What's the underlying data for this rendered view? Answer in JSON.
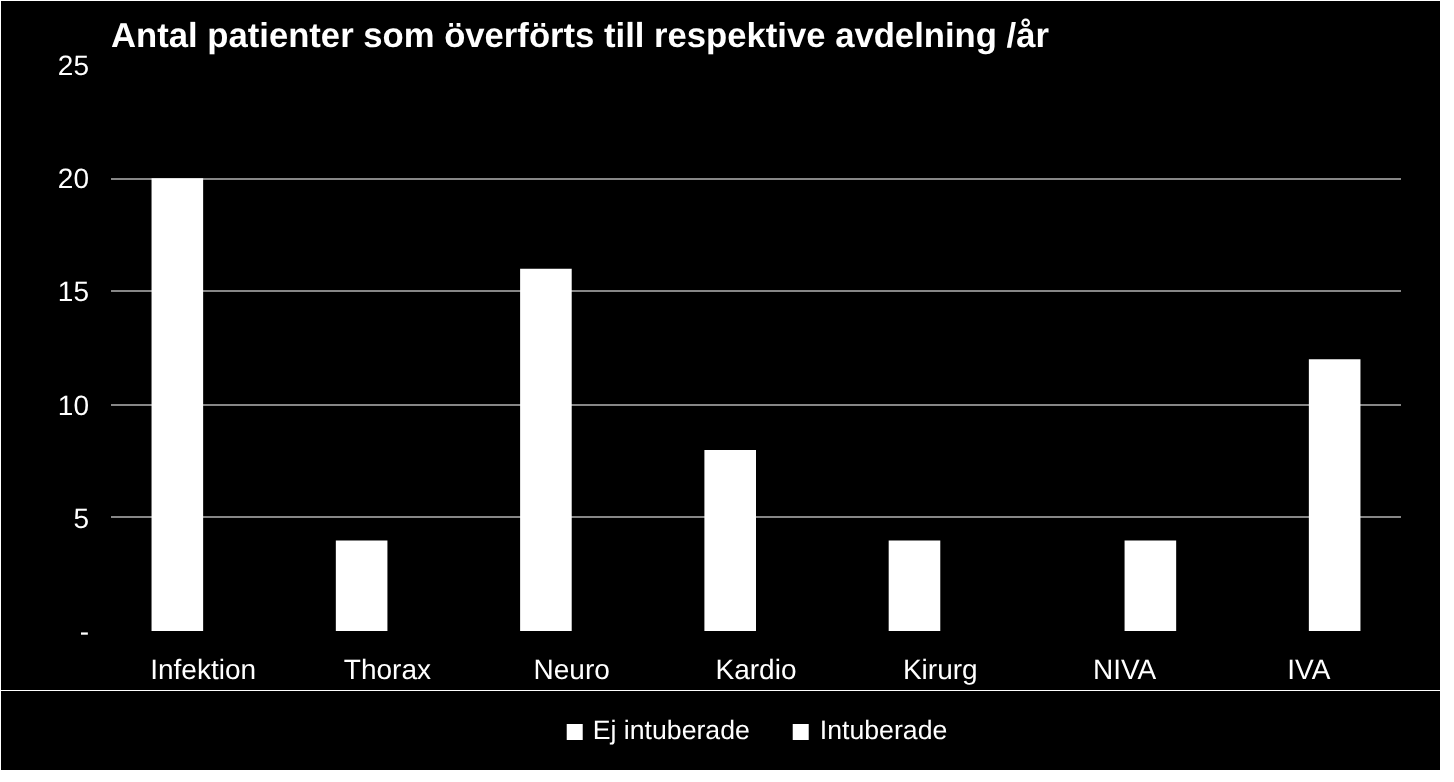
{
  "chart_data": {
    "type": "bar",
    "title": "Antal patienter som överförts till respektive avdelning /år",
    "categories": [
      "Infektion",
      "Thorax",
      "Neuro",
      "Kardio",
      "Kirurg",
      "NIVA",
      "IVA"
    ],
    "series": [
      {
        "name": "Ej intuberade",
        "color": "#ffffff",
        "values": [
          20,
          4,
          16,
          8,
          4,
          null,
          null
        ]
      },
      {
        "name": "Intuberade",
        "color": "#ffffff",
        "values": [
          null,
          null,
          null,
          null,
          null,
          4,
          12
        ]
      }
    ],
    "ylim": [
      0,
      25
    ],
    "yticks": [
      {
        "value": 0,
        "label": "-"
      },
      5,
      10,
      15,
      20,
      25
    ],
    "grid": "y",
    "legend": "bottom"
  }
}
